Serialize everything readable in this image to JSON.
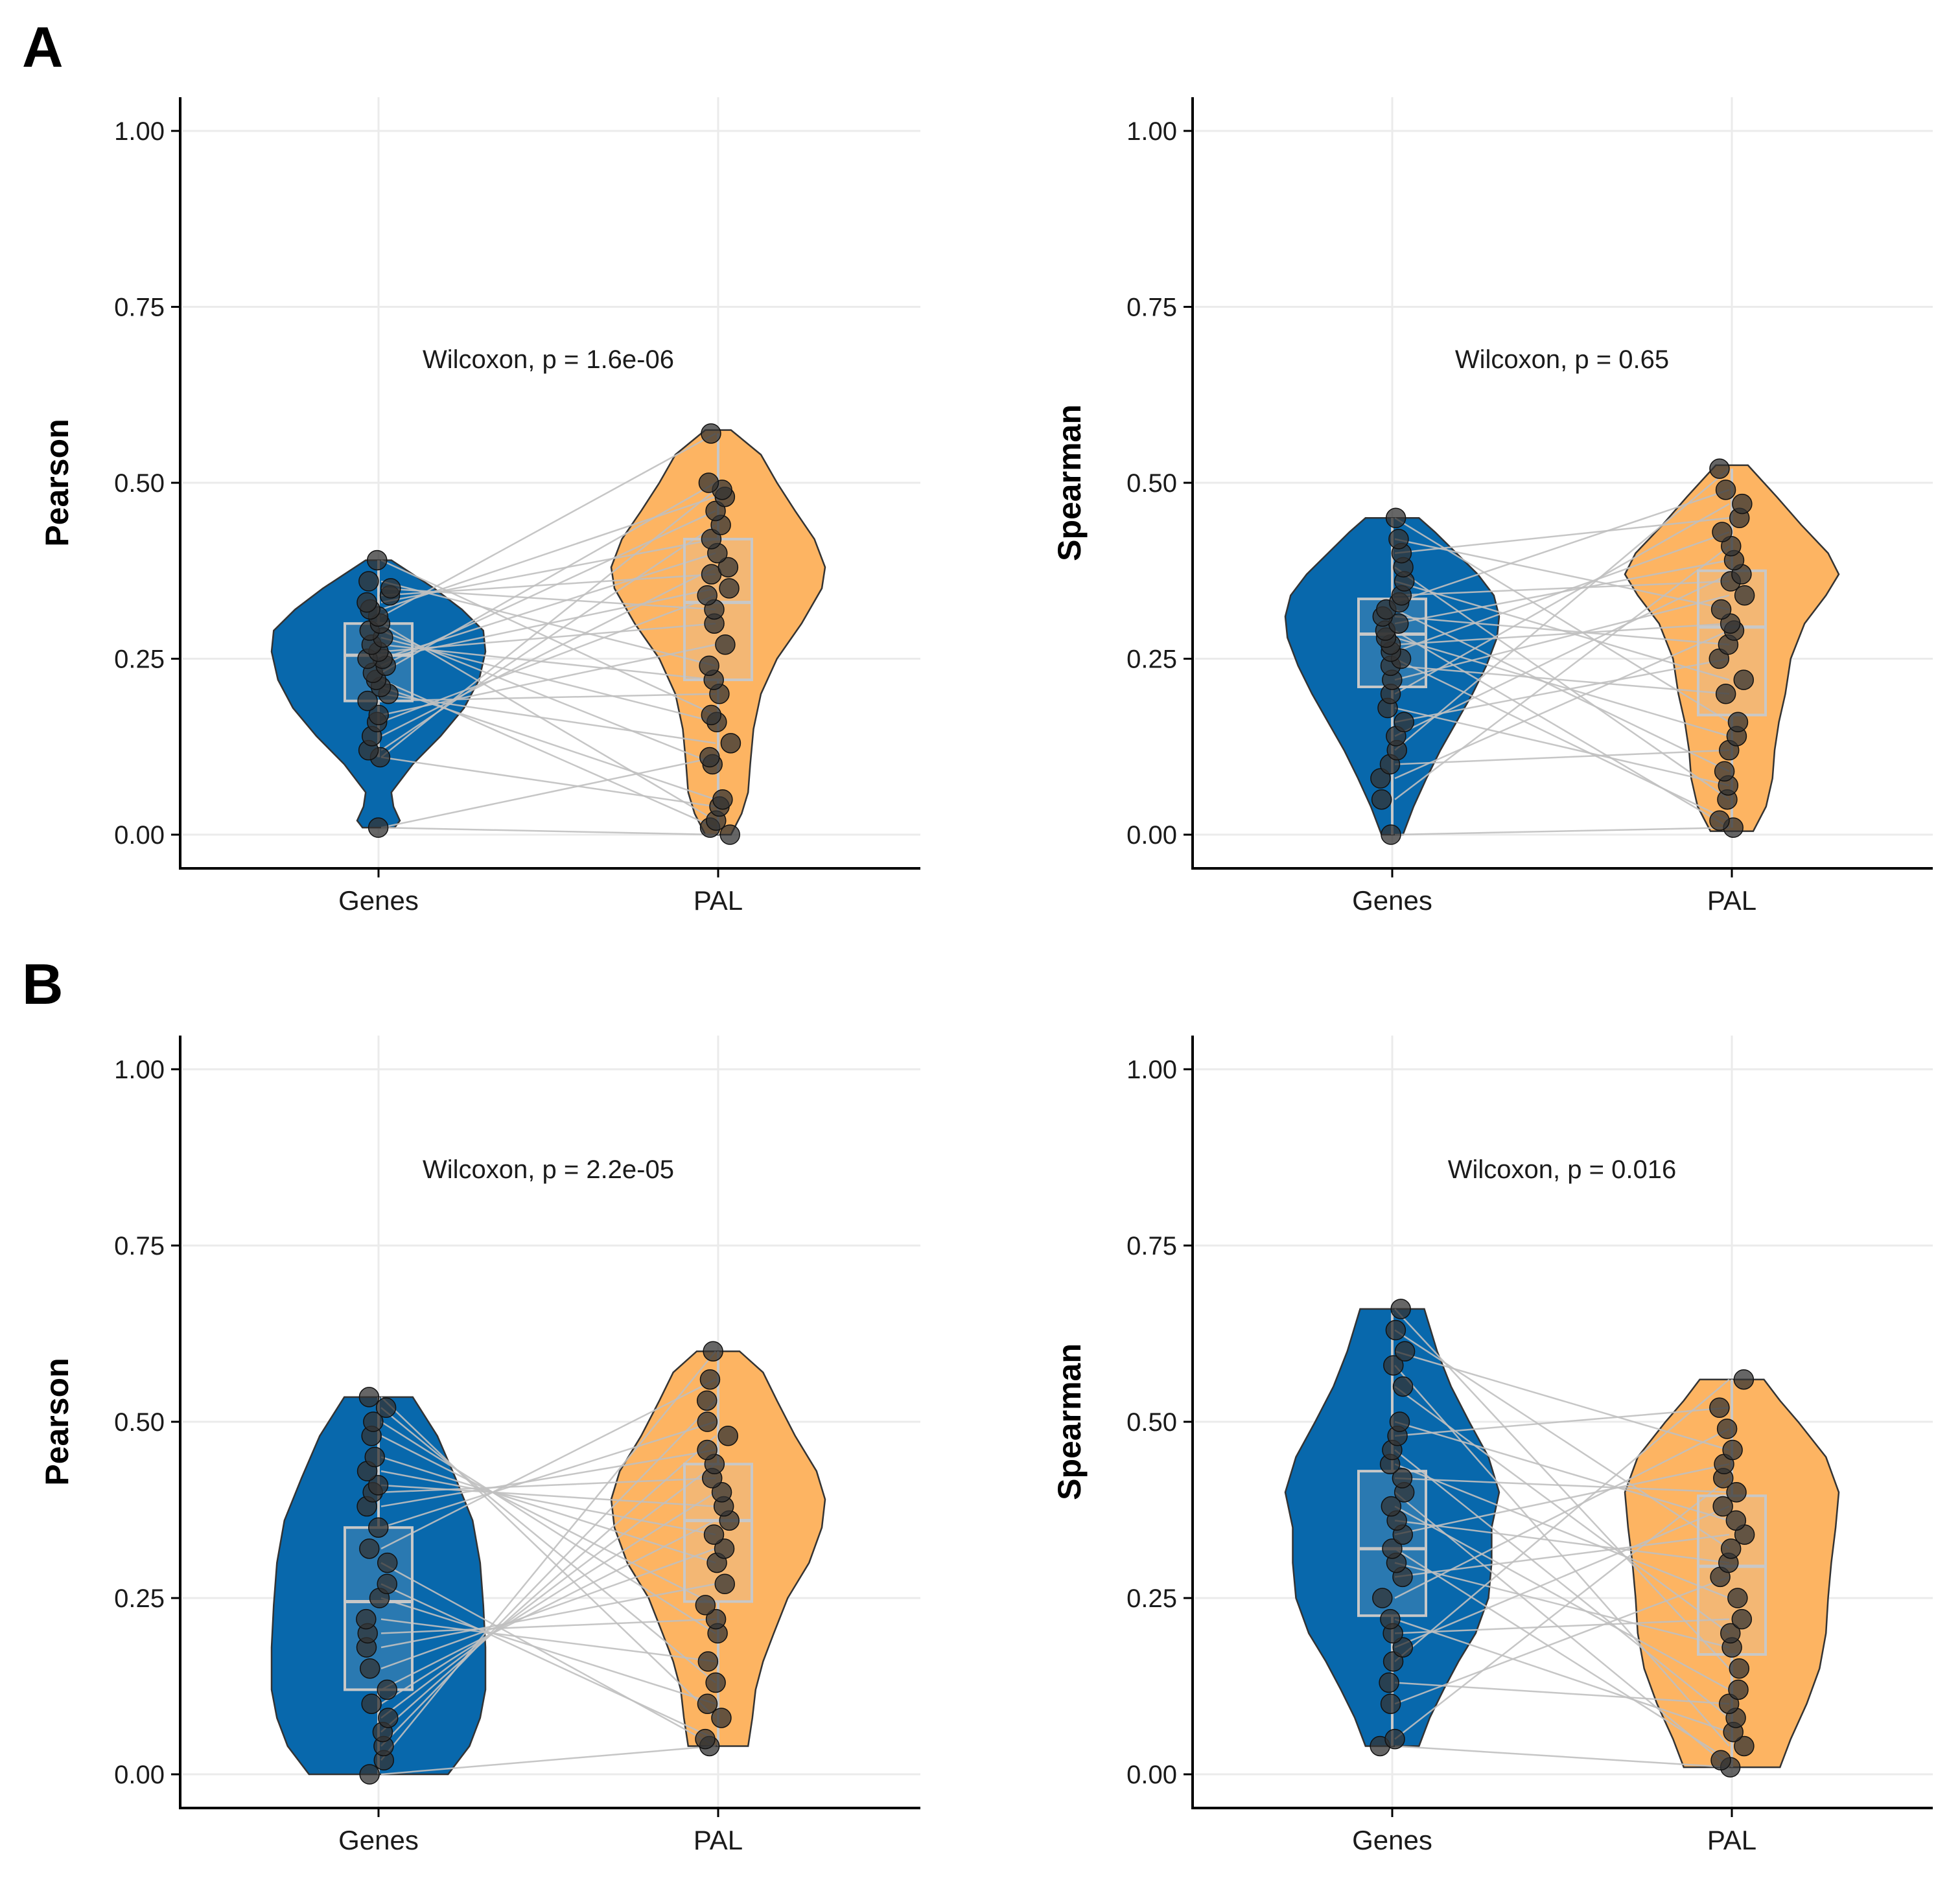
{
  "panel_labels": [
    "A",
    "B"
  ],
  "colors": {
    "genes_fill": "#0868ac",
    "pal_fill": "#fdb462",
    "line": "#c0c0c0",
    "point": "#333333",
    "box": "#c8c8c8",
    "grid": "#ebebeb",
    "axis": "#000000"
  },
  "chart_data": [
    {
      "type": "violin",
      "panel": "A",
      "position": "top-left",
      "ylabel": "Pearson",
      "xlabel": "",
      "categories": [
        "Genes",
        "PAL"
      ],
      "yticks": [
        "0.00",
        "0.25",
        "0.50",
        "0.75",
        "1.00"
      ],
      "ylim": [
        0,
        1
      ],
      "annotation": "Wilcoxon, p = 1.6e-06",
      "grid": true,
      "series": [
        {
          "name": "Genes",
          "box": {
            "q1": 0.19,
            "median": 0.255,
            "q3": 0.3,
            "min": 0.11,
            "max": 0.39
          },
          "violin_range": [
            0.01,
            0.39
          ],
          "density": [
            [
              0.01,
              0.15
            ],
            [
              0.02,
              0.2
            ],
            [
              0.04,
              0.14
            ],
            [
              0.06,
              0.12
            ],
            [
              0.1,
              0.32
            ],
            [
              0.14,
              0.58
            ],
            [
              0.18,
              0.8
            ],
            [
              0.22,
              0.94
            ],
            [
              0.26,
              1.0
            ],
            [
              0.29,
              0.98
            ],
            [
              0.32,
              0.78
            ],
            [
              0.35,
              0.52
            ],
            [
              0.37,
              0.32
            ],
            [
              0.39,
              0.12
            ]
          ],
          "points": [
            0.01,
            0.11,
            0.12,
            0.14,
            0.16,
            0.17,
            0.19,
            0.2,
            0.21,
            0.22,
            0.23,
            0.24,
            0.25,
            0.25,
            0.26,
            0.27,
            0.28,
            0.29,
            0.3,
            0.31,
            0.32,
            0.33,
            0.34,
            0.35,
            0.36,
            0.39
          ]
        },
        {
          "name": "PAL",
          "box": {
            "q1": 0.22,
            "median": 0.33,
            "q3": 0.42,
            "min": 0.0,
            "max": 0.57
          },
          "violin_range": [
            0.0,
            0.575
          ],
          "density": [
            [
              0.0,
              0.12
            ],
            [
              0.03,
              0.22
            ],
            [
              0.06,
              0.28
            ],
            [
              0.1,
              0.3
            ],
            [
              0.15,
              0.33
            ],
            [
              0.2,
              0.4
            ],
            [
              0.25,
              0.55
            ],
            [
              0.3,
              0.78
            ],
            [
              0.35,
              0.97
            ],
            [
              0.38,
              1.0
            ],
            [
              0.42,
              0.9
            ],
            [
              0.46,
              0.72
            ],
            [
              0.5,
              0.55
            ],
            [
              0.54,
              0.4
            ],
            [
              0.575,
              0.12
            ]
          ],
          "points": [
            0.0,
            0.01,
            0.02,
            0.04,
            0.05,
            0.1,
            0.11,
            0.13,
            0.16,
            0.17,
            0.2,
            0.22,
            0.24,
            0.27,
            0.3,
            0.32,
            0.34,
            0.35,
            0.37,
            0.38,
            0.4,
            0.42,
            0.44,
            0.46,
            0.48,
            0.49,
            0.5,
            0.57
          ]
        }
      ]
    },
    {
      "type": "violin",
      "panel": "A",
      "position": "top-right",
      "ylabel": "Spearman",
      "xlabel": "",
      "categories": [
        "Genes",
        "PAL"
      ],
      "yticks": [
        "0.00",
        "0.25",
        "0.50",
        "0.75",
        "1.00"
      ],
      "ylim": [
        0,
        1
      ],
      "annotation": "Wilcoxon, p = 0.65",
      "grid": true,
      "series": [
        {
          "name": "Genes",
          "box": {
            "q1": 0.21,
            "median": 0.285,
            "q3": 0.335,
            "min": 0.0,
            "max": 0.45
          },
          "violin_range": [
            0.0,
            0.45
          ],
          "density": [
            [
              0.0,
              0.1
            ],
            [
              0.04,
              0.2
            ],
            [
              0.08,
              0.32
            ],
            [
              0.12,
              0.45
            ],
            [
              0.16,
              0.6
            ],
            [
              0.2,
              0.75
            ],
            [
              0.24,
              0.88
            ],
            [
              0.28,
              0.98
            ],
            [
              0.31,
              1.0
            ],
            [
              0.34,
              0.95
            ],
            [
              0.37,
              0.8
            ],
            [
              0.4,
              0.6
            ],
            [
              0.43,
              0.4
            ],
            [
              0.45,
              0.25
            ]
          ],
          "points": [
            0.0,
            0.05,
            0.08,
            0.1,
            0.12,
            0.14,
            0.16,
            0.18,
            0.2,
            0.22,
            0.24,
            0.25,
            0.26,
            0.27,
            0.28,
            0.29,
            0.3,
            0.31,
            0.32,
            0.33,
            0.34,
            0.36,
            0.38,
            0.4,
            0.42,
            0.45
          ]
        },
        {
          "name": "PAL",
          "box": {
            "q1": 0.17,
            "median": 0.295,
            "q3": 0.375,
            "min": 0.01,
            "max": 0.52
          },
          "violin_range": [
            0.005,
            0.525
          ],
          "density": [
            [
              0.005,
              0.2
            ],
            [
              0.04,
              0.32
            ],
            [
              0.08,
              0.38
            ],
            [
              0.12,
              0.4
            ],
            [
              0.16,
              0.44
            ],
            [
              0.2,
              0.5
            ],
            [
              0.25,
              0.55
            ],
            [
              0.3,
              0.68
            ],
            [
              0.34,
              0.88
            ],
            [
              0.37,
              1.0
            ],
            [
              0.4,
              0.9
            ],
            [
              0.44,
              0.65
            ],
            [
              0.48,
              0.42
            ],
            [
              0.525,
              0.15
            ]
          ],
          "points": [
            0.01,
            0.02,
            0.05,
            0.07,
            0.09,
            0.12,
            0.14,
            0.16,
            0.2,
            0.22,
            0.25,
            0.27,
            0.29,
            0.3,
            0.32,
            0.34,
            0.36,
            0.37,
            0.39,
            0.41,
            0.43,
            0.45,
            0.47,
            0.49,
            0.52
          ]
        }
      ]
    },
    {
      "type": "violin",
      "panel": "B",
      "position": "bottom-left",
      "ylabel": "Pearson",
      "xlabel": "",
      "categories": [
        "Genes",
        "PAL"
      ],
      "yticks": [
        "0.00",
        "0.25",
        "0.50",
        "0.75",
        "1.00"
      ],
      "ylim": [
        0,
        1
      ],
      "annotation": "Wilcoxon, p = 2.2e-05",
      "grid": true,
      "series": [
        {
          "name": "Genes",
          "box": {
            "q1": 0.12,
            "median": 0.245,
            "q3": 0.35,
            "min": 0.0,
            "max": 0.535
          },
          "violin_range": [
            0.0,
            0.535
          ],
          "density": [
            [
              0.0,
              0.65
            ],
            [
              0.04,
              0.85
            ],
            [
              0.08,
              0.95
            ],
            [
              0.12,
              1.0
            ],
            [
              0.18,
              1.0
            ],
            [
              0.24,
              0.98
            ],
            [
              0.3,
              0.95
            ],
            [
              0.36,
              0.88
            ],
            [
              0.42,
              0.72
            ],
            [
              0.48,
              0.55
            ],
            [
              0.535,
              0.32
            ]
          ],
          "points": [
            0.0,
            0.02,
            0.04,
            0.06,
            0.08,
            0.1,
            0.12,
            0.15,
            0.18,
            0.2,
            0.22,
            0.25,
            0.27,
            0.3,
            0.32,
            0.35,
            0.38,
            0.4,
            0.41,
            0.43,
            0.45,
            0.48,
            0.5,
            0.52,
            0.535
          ]
        },
        {
          "name": "PAL",
          "box": {
            "q1": 0.245,
            "median": 0.36,
            "q3": 0.44,
            "min": 0.04,
            "max": 0.6
          },
          "violin_range": [
            0.04,
            0.6
          ],
          "density": [
            [
              0.04,
              0.28
            ],
            [
              0.08,
              0.32
            ],
            [
              0.12,
              0.35
            ],
            [
              0.16,
              0.42
            ],
            [
              0.2,
              0.52
            ],
            [
              0.25,
              0.65
            ],
            [
              0.3,
              0.85
            ],
            [
              0.35,
              0.97
            ],
            [
              0.39,
              1.0
            ],
            [
              0.43,
              0.92
            ],
            [
              0.48,
              0.72
            ],
            [
              0.53,
              0.55
            ],
            [
              0.57,
              0.42
            ],
            [
              0.6,
              0.2
            ]
          ],
          "points": [
            0.04,
            0.05,
            0.08,
            0.1,
            0.13,
            0.16,
            0.2,
            0.22,
            0.24,
            0.27,
            0.3,
            0.32,
            0.34,
            0.36,
            0.38,
            0.4,
            0.42,
            0.44,
            0.46,
            0.48,
            0.5,
            0.53,
            0.56,
            0.6
          ]
        }
      ]
    },
    {
      "type": "violin",
      "panel": "B",
      "position": "bottom-right",
      "ylabel": "Spearman",
      "xlabel": "",
      "categories": [
        "Genes",
        "PAL"
      ],
      "yticks": [
        "0.00",
        "0.25",
        "0.50",
        "0.75",
        "1.00"
      ],
      "ylim": [
        0,
        1
      ],
      "annotation": "Wilcoxon, p = 0.016",
      "grid": true,
      "series": [
        {
          "name": "Genes",
          "box": {
            "q1": 0.225,
            "median": 0.32,
            "q3": 0.43,
            "min": 0.04,
            "max": 0.655
          },
          "violin_range": [
            0.04,
            0.66
          ],
          "density": [
            [
              0.04,
              0.25
            ],
            [
              0.08,
              0.35
            ],
            [
              0.12,
              0.48
            ],
            [
              0.16,
              0.62
            ],
            [
              0.2,
              0.78
            ],
            [
              0.25,
              0.9
            ],
            [
              0.3,
              0.93
            ],
            [
              0.35,
              0.93
            ],
            [
              0.4,
              1.0
            ],
            [
              0.45,
              0.9
            ],
            [
              0.5,
              0.72
            ],
            [
              0.55,
              0.55
            ],
            [
              0.6,
              0.42
            ],
            [
              0.66,
              0.3
            ]
          ],
          "points": [
            0.04,
            0.05,
            0.1,
            0.13,
            0.16,
            0.18,
            0.2,
            0.22,
            0.25,
            0.28,
            0.3,
            0.32,
            0.34,
            0.36,
            0.38,
            0.4,
            0.42,
            0.44,
            0.46,
            0.48,
            0.5,
            0.55,
            0.58,
            0.6,
            0.63,
            0.66
          ]
        },
        {
          "name": "PAL",
          "box": {
            "q1": 0.17,
            "median": 0.295,
            "q3": 0.395,
            "min": 0.01,
            "max": 0.56
          },
          "violin_range": [
            0.01,
            0.56
          ],
          "density": [
            [
              0.01,
              0.45
            ],
            [
              0.05,
              0.55
            ],
            [
              0.1,
              0.7
            ],
            [
              0.15,
              0.82
            ],
            [
              0.2,
              0.88
            ],
            [
              0.25,
              0.9
            ],
            [
              0.3,
              0.93
            ],
            [
              0.35,
              0.97
            ],
            [
              0.4,
              1.0
            ],
            [
              0.45,
              0.88
            ],
            [
              0.5,
              0.62
            ],
            [
              0.53,
              0.45
            ],
            [
              0.56,
              0.3
            ]
          ],
          "points": [
            0.01,
            0.02,
            0.04,
            0.06,
            0.08,
            0.1,
            0.12,
            0.15,
            0.18,
            0.2,
            0.22,
            0.25,
            0.28,
            0.3,
            0.32,
            0.34,
            0.36,
            0.38,
            0.4,
            0.42,
            0.44,
            0.46,
            0.49,
            0.52,
            0.56
          ]
        }
      ]
    }
  ]
}
